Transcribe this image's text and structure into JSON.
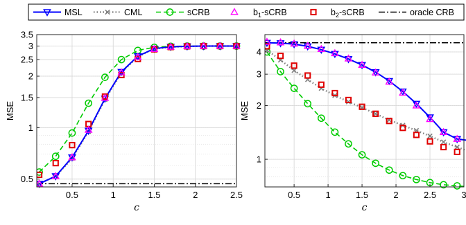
{
  "legend": [
    {
      "label": "MSL",
      "color": "#0000ff",
      "dash": "solid",
      "marker": "tri-down"
    },
    {
      "label": "CML",
      "color": "#808080",
      "dash": "dot",
      "marker": "x"
    },
    {
      "label": "sCRB",
      "color": "#00cc00",
      "dash": "dash",
      "marker": "circle"
    },
    {
      "label": "b₁-sCRB",
      "label_base": "b",
      "label_sub": "1",
      "label_rest": "-sCRB",
      "color": "#ff00ff",
      "dash": "none",
      "marker": "tri-up"
    },
    {
      "label": "b₂-sCRB",
      "label_base": "b",
      "label_sub": "2",
      "label_rest": "-sCRB",
      "color": "#e00000",
      "dash": "none",
      "marker": "square"
    },
    {
      "label": "oracle CRB",
      "color": "#000000",
      "dash": "dashdot",
      "marker": "none"
    }
  ],
  "chart_data": [
    {
      "type": "line",
      "xlabel": "c",
      "ylabel": "MSE",
      "xlim": [
        0.07,
        2.5
      ],
      "ylim": [
        0.45,
        3.5
      ],
      "yscale": "log",
      "xticks": [
        0.5,
        1,
        1.5,
        2,
        2.5
      ],
      "xticklabels": [
        "0.5",
        "1",
        "1.5",
        "2",
        "2.5"
      ],
      "yticks": [
        0.5,
        1,
        1.5,
        2,
        2.5,
        3,
        3.5
      ],
      "yticklabels": [
        "0.5",
        "1",
        "1.5",
        "2",
        "2.5",
        "3",
        "3.5"
      ],
      "grid": true,
      "x": [
        0.1,
        0.3,
        0.5,
        0.7,
        0.9,
        1.1,
        1.3,
        1.5,
        1.7,
        1.9,
        2.1,
        2.3,
        2.5
      ],
      "series": [
        {
          "name": "MSL",
          "values": [
            0.47,
            0.52,
            0.67,
            0.96,
            1.48,
            2.12,
            2.62,
            2.9,
            2.97,
            2.99,
            3.0,
            3.0,
            3.0
          ]
        },
        {
          "name": "CML",
          "values": [
            0.47,
            0.52,
            0.66,
            0.95,
            1.46,
            2.09,
            2.6,
            2.89,
            2.96,
            2.99,
            3.0,
            3.0,
            3.0
          ]
        },
        {
          "name": "sCRB",
          "values": [
            0.55,
            0.68,
            0.93,
            1.39,
            1.97,
            2.5,
            2.83,
            2.95,
            2.99,
            3.0,
            3.0,
            3.0,
            3.0
          ]
        },
        {
          "name": "b₁-sCRB",
          "values": [
            0.47,
            0.52,
            0.67,
            0.97,
            1.49,
            2.1,
            2.58,
            2.88,
            2.97,
            2.99,
            3.0,
            3.0,
            3.0
          ]
        },
        {
          "name": "b₂-sCRB",
          "values": [
            0.53,
            0.62,
            0.79,
            1.05,
            1.52,
            2.03,
            2.52,
            2.87,
            2.96,
            2.99,
            3.0,
            3.0,
            3.0
          ]
        },
        {
          "name": "oracle CRB",
          "values": [
            0.47,
            0.47,
            0.47,
            0.47,
            0.47,
            0.47,
            0.47,
            0.47,
            0.47,
            0.47,
            0.47,
            0.47,
            0.47
          ]
        }
      ]
    },
    {
      "type": "line",
      "xlabel": "c",
      "ylabel": "MSE",
      "xlim": [
        0.07,
        3.0
      ],
      "ylim": [
        0.7,
        5.0
      ],
      "yscale": "log",
      "xticks": [
        0.5,
        1,
        1.5,
        2,
        2.5,
        3
      ],
      "xticklabels": [
        "0.5",
        "1",
        "1.5",
        "2",
        "2.5",
        "3"
      ],
      "yticks": [
        1,
        2,
        3,
        4
      ],
      "yticklabels": [
        "1",
        "2",
        "3",
        "4"
      ],
      "grid": true,
      "x": [
        0.1,
        0.3,
        0.5,
        0.7,
        0.9,
        1.1,
        1.3,
        1.5,
        1.7,
        1.9,
        2.1,
        2.3,
        2.5,
        2.7,
        2.9,
        3.1
      ],
      "series": [
        {
          "name": "MSL",
          "values": [
            4.5,
            4.48,
            4.42,
            4.3,
            4.12,
            3.9,
            3.65,
            3.38,
            3.08,
            2.75,
            2.4,
            2.05,
            1.72,
            1.42,
            1.3,
            1.27
          ]
        },
        {
          "name": "CML",
          "values": [
            4.1,
            3.6,
            3.15,
            2.8,
            2.5,
            2.28,
            2.1,
            1.95,
            1.8,
            1.66,
            1.55,
            1.45,
            1.35,
            1.25,
            1.17,
            1.1
          ]
        },
        {
          "name": "sCRB",
          "values": [
            4.0,
            3.1,
            2.5,
            2.05,
            1.7,
            1.42,
            1.22,
            1.06,
            0.95,
            0.87,
            0.81,
            0.77,
            0.74,
            0.72,
            0.71,
            0.7
          ]
        },
        {
          "name": "b₁-sCRB",
          "values": [
            4.55,
            4.52,
            4.45,
            4.32,
            4.15,
            3.93,
            3.67,
            3.38,
            3.06,
            2.72,
            2.36,
            2.0,
            1.68,
            1.42,
            1.3,
            1.26
          ]
        },
        {
          "name": "b₂-sCRB",
          "values": [
            4.3,
            3.8,
            3.35,
            2.95,
            2.62,
            2.35,
            2.15,
            1.97,
            1.8,
            1.64,
            1.5,
            1.37,
            1.26,
            1.17,
            1.1,
            1.05
          ]
        },
        {
          "name": "oracle CRB",
          "values": [
            4.5,
            4.5,
            4.5,
            4.5,
            4.5,
            4.5,
            4.5,
            4.5,
            4.5,
            4.5,
            4.5,
            4.5,
            4.5,
            4.5,
            4.5,
            4.5
          ]
        }
      ]
    }
  ]
}
